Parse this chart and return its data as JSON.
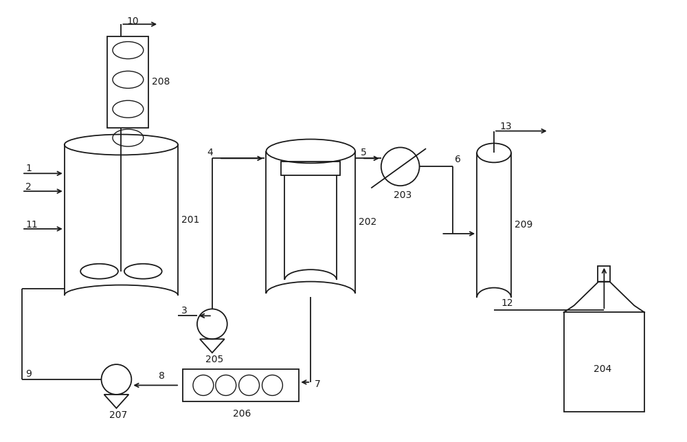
{
  "bg_color": "#ffffff",
  "line_color": "#1a1a1a",
  "fig_width": 10.0,
  "fig_height": 6.43,
  "dpi": 100
}
